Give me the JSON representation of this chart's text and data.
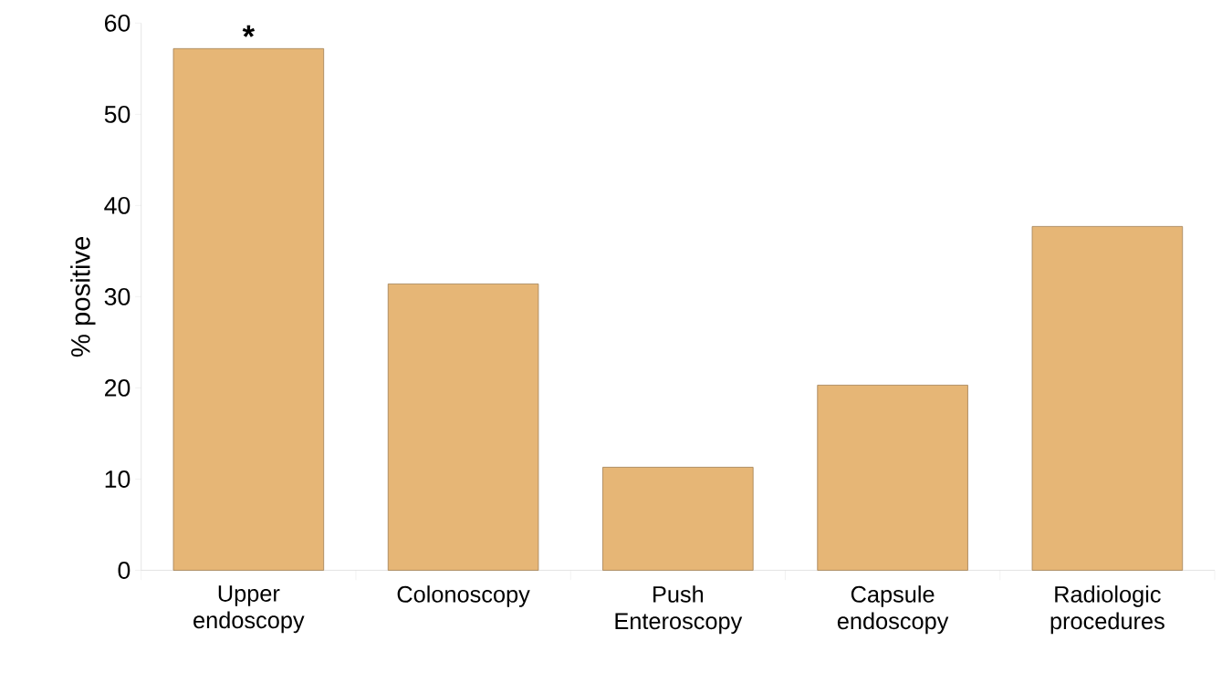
{
  "chart_data": {
    "type": "bar",
    "ylabel": "% positive",
    "categories": [
      "Upper endoscopy",
      "Colonoscopy",
      "Push Enteroscopy",
      "Capsule endoscopy",
      "Radiologic procedures"
    ],
    "values": [
      57.2,
      31.4,
      11.3,
      20.3,
      37.7
    ],
    "color": "#e6b676",
    "ylim": [
      0,
      60
    ],
    "yticks": [
      0,
      10,
      20,
      30,
      40,
      50,
      60
    ],
    "grid": false,
    "annotations": [
      {
        "text": "*",
        "x": "Upper endoscopy",
        "y": 57.2
      }
    ]
  }
}
